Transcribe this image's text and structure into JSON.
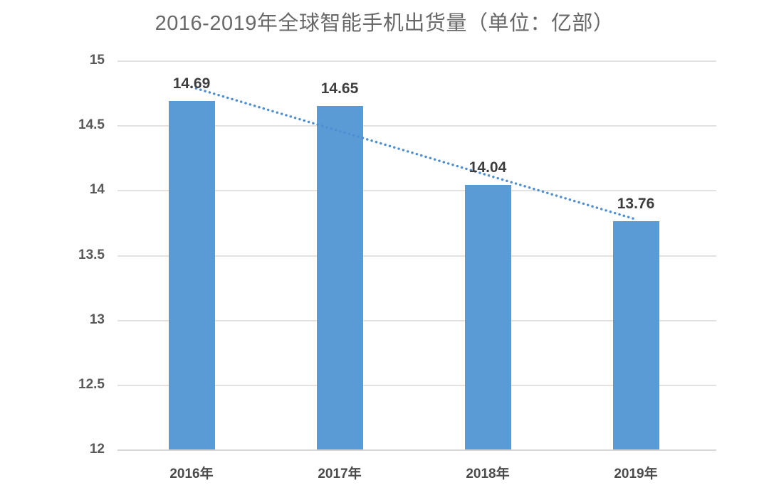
{
  "chart_data": {
    "type": "bar",
    "title": "2016-2019年全球智能手机出货量（单位：亿部）",
    "categories": [
      "2016年",
      "2017年",
      "2018年",
      "2019年"
    ],
    "values": [
      14.69,
      14.65,
      14.04,
      13.76
    ],
    "value_labels": [
      "14.69",
      "14.65",
      "14.04",
      "13.76"
    ],
    "ytick_labels": [
      "15",
      "14.5",
      "14",
      "13.5",
      "13",
      "12.5",
      "12"
    ],
    "ytick_values": [
      15,
      14.5,
      14,
      13.5,
      13,
      12.5,
      12
    ],
    "ylim": [
      12,
      15
    ],
    "xlabel": "",
    "ylabel": "",
    "grid": "horizontal",
    "legend": "none",
    "bar_color": "#5b9bd5",
    "trendline": {
      "style": "dotted",
      "color": "#4e8ed2",
      "fit": "linear"
    },
    "title_color": "#686868",
    "label_color": "#3d3d3d",
    "axis_label_color": "#595959",
    "gridline_color": "#e2e2e2"
  }
}
